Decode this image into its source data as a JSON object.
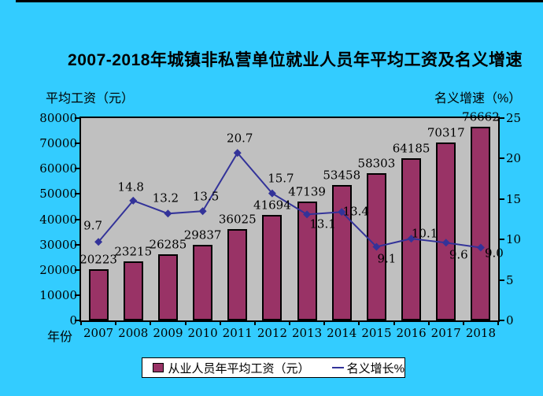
{
  "page": {
    "background": "#33CCFF"
  },
  "chart_data": {
    "type": "bar+line",
    "title": "2007-2018年城镇非私营单位就业人员年平均工资及名义增速",
    "plot_background": "#C0C0C0",
    "grid": false,
    "x_axis": {
      "title": "年份",
      "categories": [
        "2007",
        "2008",
        "2009",
        "2010",
        "2011",
        "2012",
        "2013",
        "2014",
        "2015",
        "2016",
        "2017",
        "2018"
      ]
    },
    "left_axis": {
      "title": "平均工资（元）",
      "min": 0,
      "max": 80000,
      "step": 10000
    },
    "right_axis": {
      "title": "名义增速（%）",
      "min": 0,
      "max": 25,
      "step": 5
    },
    "series": [
      {
        "name": "从业人员年平均工资（元）",
        "type": "bar",
        "axis": "left",
        "color": "#993366",
        "values": [
          20223,
          23215,
          26285,
          29837,
          36025,
          41694,
          47139,
          53458,
          58303,
          64185,
          70317,
          76662
        ],
        "labels": [
          "20223",
          "23215",
          "26285",
          "29837",
          "36025",
          "41694",
          "47139",
          "53458",
          "58303",
          "64185",
          "70317",
          "76662"
        ]
      },
      {
        "name": "名义增长%",
        "type": "line",
        "axis": "right",
        "color": "#333399",
        "values": [
          9.7,
          14.8,
          13.2,
          13.5,
          20.7,
          15.7,
          13.1,
          13.4,
          9.1,
          10.1,
          9.6,
          9.0
        ],
        "labels": [
          "9.7",
          "14.8",
          "13.2",
          "13.5",
          "20.7",
          "15.7",
          "13.1",
          "13.4",
          "9.1",
          "10.1",
          "9.6",
          "9.0"
        ],
        "label_offsets": [
          [
            -7,
            -20
          ],
          [
            -3,
            -17
          ],
          [
            -3,
            -19
          ],
          [
            4,
            -18
          ],
          [
            3,
            -18
          ],
          [
            11,
            -19
          ],
          [
            20,
            13
          ],
          [
            18,
            0
          ],
          [
            13,
            16
          ],
          [
            17,
            -6
          ],
          [
            16,
            16
          ],
          [
            17,
            8
          ]
        ]
      }
    ],
    "legend": {
      "position": "bottom"
    }
  },
  "legend": {
    "bar_label": "从业人员年平均工资（元）",
    "line_label": "名义增长%"
  }
}
